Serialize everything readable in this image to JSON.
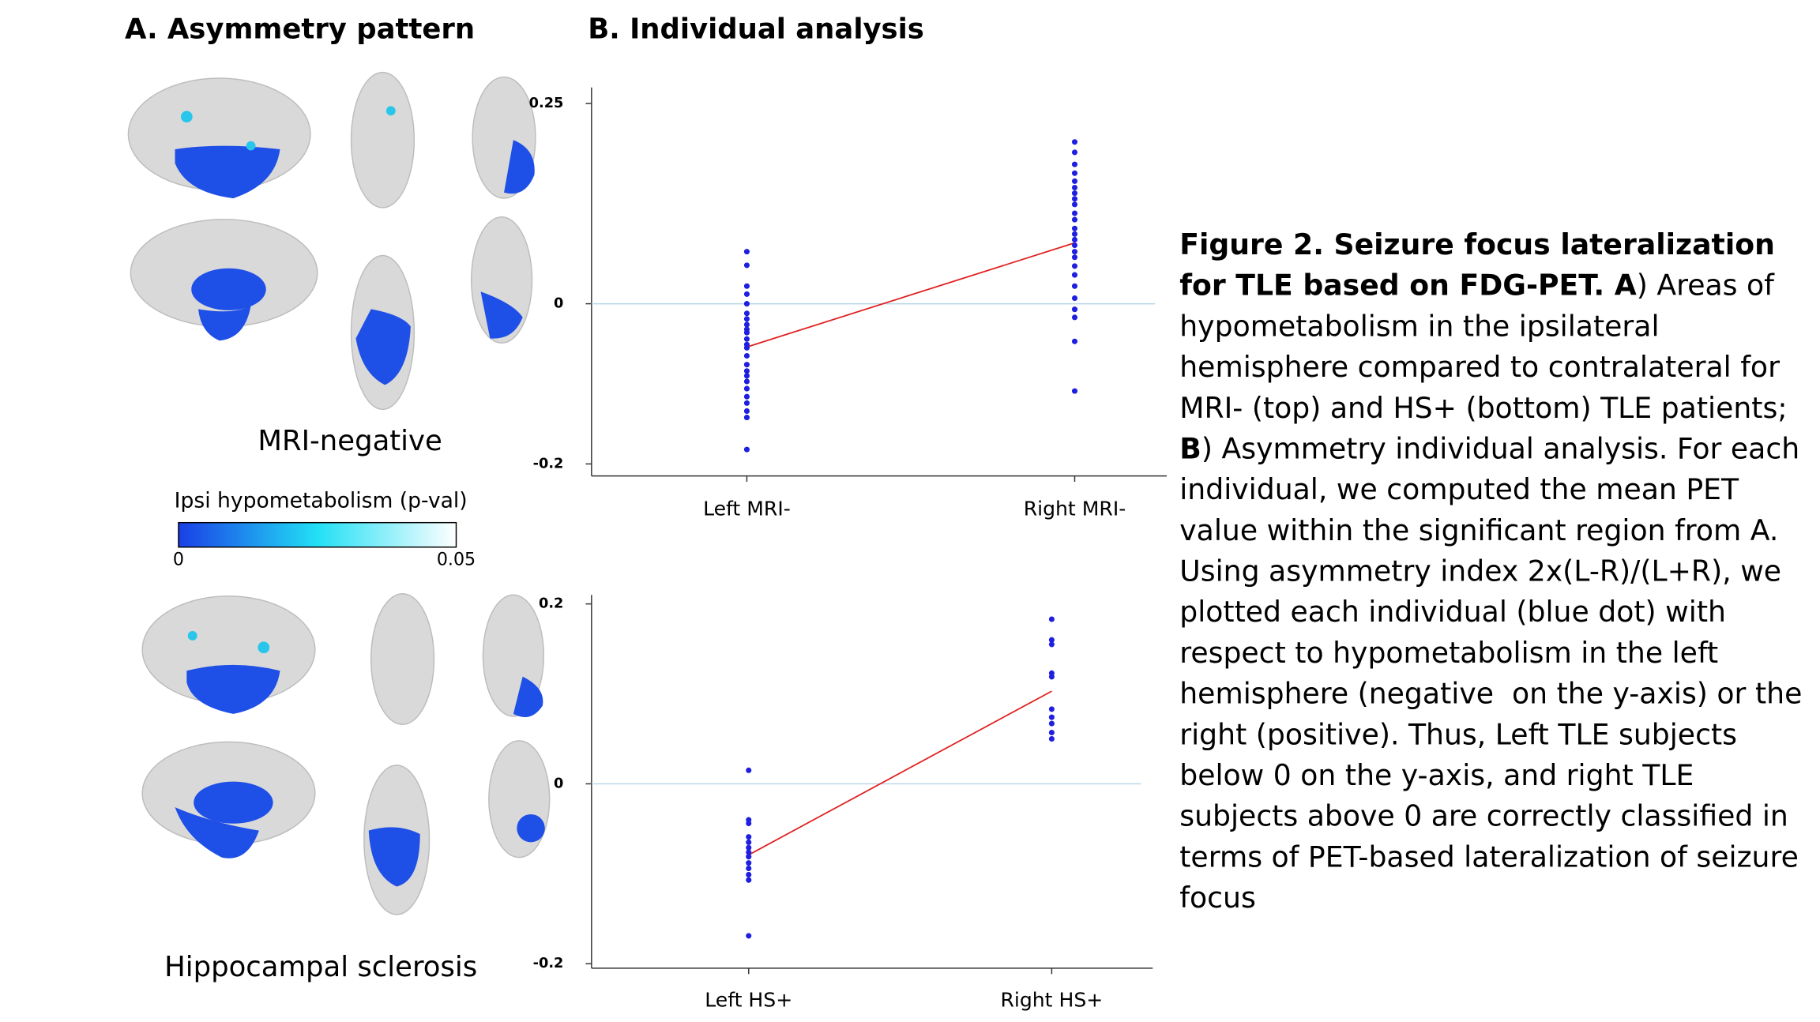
{
  "panel_a": {
    "title": "A. Asymmetry pattern",
    "group_top": "MRI-negative",
    "group_bottom": "Hippocampal sclerosis",
    "colorbar": {
      "label": "Ipsi hypometabolism (p-val)",
      "ticks": [
        0,
        0.05
      ],
      "colors": [
        "#1a3fe6",
        "#22e0f5",
        "#ffffff"
      ]
    }
  },
  "panel_b": {
    "title": "B. Individual analysis"
  },
  "chart_data": [
    {
      "type": "strip",
      "categories": [
        "Left MRI-",
        "Right MRI-"
      ],
      "groups": [
        [
          0.065,
          0.048,
          0.022,
          0.012,
          0,
          -0.012,
          -0.019,
          -0.026,
          -0.032,
          -0.036,
          -0.044,
          -0.051,
          -0.055,
          -0.065,
          -0.076,
          -0.084,
          -0.09,
          -0.097,
          -0.106,
          -0.116,
          -0.124,
          -0.134,
          -0.142,
          -0.182
        ],
        [
          0.202,
          0.189,
          0.174,
          0.163,
          0.153,
          0.145,
          0.138,
          0.131,
          0.124,
          0.113,
          0.105,
          0.094,
          0.087,
          0.08,
          0.073,
          0.065,
          0.058,
          0.047,
          0.036,
          0.022,
          0.007,
          -0.007,
          -0.017,
          -0.047,
          -0.109
        ]
      ],
      "means": [
        -0.054,
        0.076
      ],
      "point_color": "#1f1fe0",
      "mean_color": "#e02020",
      "zero_line": true,
      "ylim": [
        -0.215,
        0.27
      ],
      "yticks": [
        -0.2,
        0,
        0.25
      ]
    },
    {
      "type": "strip",
      "categories": [
        "Left HS+",
        "Right HS+"
      ],
      "groups": [
        [
          0.015,
          -0.04,
          -0.044,
          -0.059,
          -0.065,
          -0.071,
          -0.076,
          -0.081,
          -0.088,
          -0.094,
          -0.101,
          -0.107,
          -0.169
        ],
        [
          0.183,
          0.16,
          0.155,
          0.123,
          0.119,
          0.083,
          0.074,
          0.067,
          0.057,
          0.05
        ]
      ],
      "means": [
        -0.079,
        0.103
      ],
      "point_color": "#1f1fe0",
      "mean_color": "#e02020",
      "zero_line": true,
      "ylim": [
        -0.205,
        0.21
      ],
      "yticks": [
        -0.2,
        0,
        0.2
      ]
    }
  ],
  "caption": [
    {
      "text": "Figure 2. Seizure focus lateralization for TLE based on FDG-PET. A",
      "bold": true
    },
    {
      "text": ") Areas of hypometabolism in the ipsilateral hemisphere compared to contralateral for MRI- (top) and HS+ (bottom) TLE patients; ",
      "bold": false
    },
    {
      "text": "B",
      "bold": true
    },
    {
      "text": ") Asymmetry individual analysis. For each individual, we computed the mean PET value within the significant region from A. Using asymmetry index 2x(L-R)/(L+R), we plotted each individual (blue dot) with respect to hypometabolism in the left hemisphere (negative  on the y-axis) or the right (positive). Thus, Left TLE subjects below 0 on the y-axis, and right TLE subjects above 0 are correctly classified in terms of PET-based lateralization of seizure focus",
      "bold": false
    }
  ]
}
